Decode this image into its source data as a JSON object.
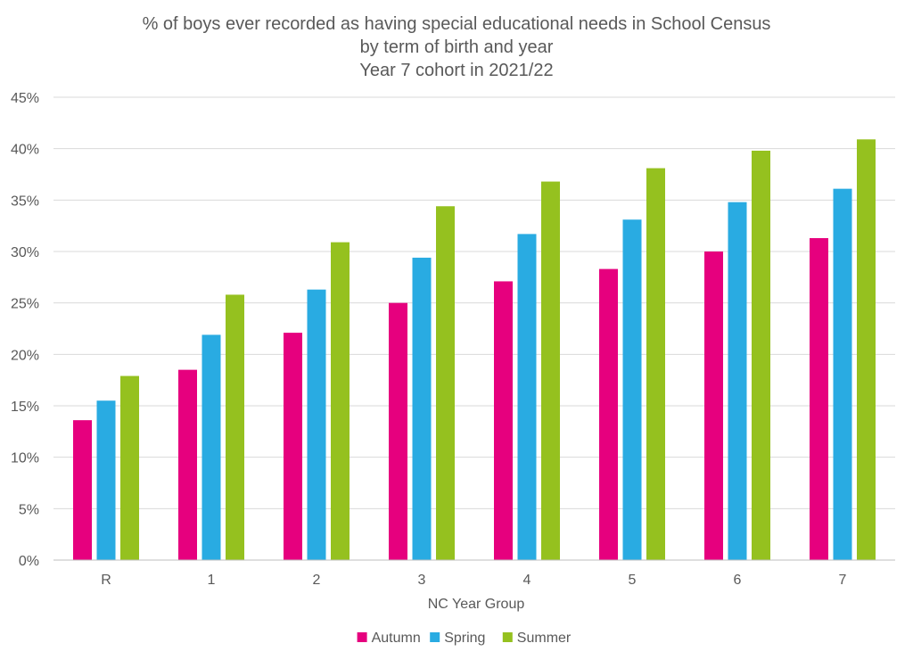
{
  "chart_data": {
    "type": "bar",
    "title": [
      "% of boys ever recorded as having special educational needs in School Census",
      "by term of birth and year",
      "Year 7 cohort in 2021/22"
    ],
    "xlabel": "NC Year Group",
    "ylabel": "",
    "categories": [
      "R",
      "1",
      "2",
      "3",
      "4",
      "5",
      "6",
      "7"
    ],
    "ylim": [
      0,
      45
    ],
    "y_ticks": [
      0,
      5,
      10,
      15,
      20,
      25,
      30,
      35,
      40,
      45
    ],
    "y_tick_labels": [
      "0%",
      "5%",
      "10%",
      "15%",
      "20%",
      "25%",
      "30%",
      "35%",
      "40%",
      "45%"
    ],
    "grid": true,
    "legend_position": "bottom",
    "series": [
      {
        "name": "Autumn",
        "color": "#e6007e",
        "values": [
          13.6,
          18.5,
          22.1,
          25.0,
          27.1,
          28.3,
          30.0,
          31.3
        ]
      },
      {
        "name": "Spring",
        "color": "#29abe2",
        "values": [
          15.5,
          21.9,
          26.3,
          29.4,
          31.7,
          33.1,
          34.8,
          36.1
        ]
      },
      {
        "name": "Summer",
        "color": "#95c11f",
        "values": [
          17.9,
          25.8,
          30.9,
          34.4,
          36.8,
          38.1,
          39.8,
          40.9
        ]
      }
    ]
  }
}
